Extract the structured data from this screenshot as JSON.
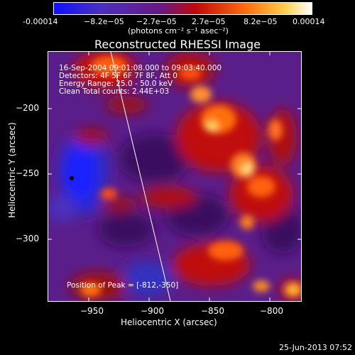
{
  "colorbar": {
    "ticks": [
      "-0.00014",
      "−8.2e−05",
      "−2.7e−05",
      "2.7e−05",
      "8.2e−05",
      "0.00014"
    ],
    "units": "(photons cm⁻² s⁻¹ asec⁻²)",
    "colors": [
      "#1a1aff",
      "#5a2aa0",
      "#6a2080",
      "#c01010",
      "#ff6010",
      "#ffd050",
      "#ffffff"
    ]
  },
  "title": "Reconstructed RHESSI Image",
  "info_lines": [
    "16-Sep-2004 09:01:08.000 to 09:03:40.000",
    "Detectors: 4F 5F 6F 7F 8F, Att 0",
    "Energy Range: 25.0 - 50.0 keV",
    "Clean    Total counts: 2.44E+03"
  ],
  "peak_label": "Position of Peak = [-812,-350]",
  "y_ticks": [
    "−200",
    "−250",
    "−300"
  ],
  "x_ticks": [
    "−950",
    "−900",
    "−850",
    "−800"
  ],
  "xlabel": "Heliocentric X (arcsec)",
  "ylabel": "Heliocentric Y (arcsec)",
  "timestamp": "25-Jun-2013 07:52"
}
